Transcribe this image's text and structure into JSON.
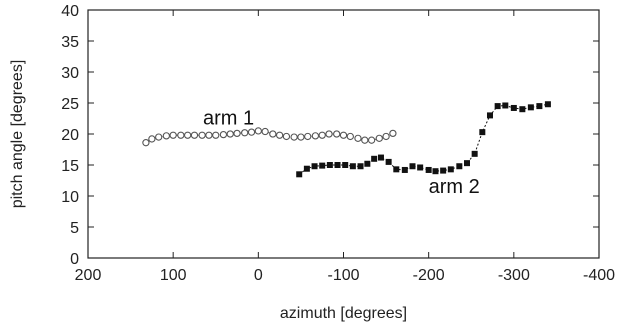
{
  "chart_data": {
    "type": "line",
    "xlabel": "azimuth [degrees]",
    "ylabel": "pitch angle [degrees]",
    "xlim": [
      200,
      -400
    ],
    "ylim": [
      0,
      40
    ],
    "x_reversed": true,
    "grid": false,
    "x_ticks": [
      200,
      100,
      0,
      -100,
      -200,
      -300,
      -400
    ],
    "x_tick_labels": [
      "200",
      "100",
      "0",
      "-100",
      "-200",
      "-300",
      "-400"
    ],
    "y_ticks": [
      0,
      5,
      10,
      15,
      20,
      25,
      30,
      35,
      40
    ],
    "y_tick_labels": [
      "0",
      "5",
      "10",
      "15",
      "20",
      "25",
      "30",
      "35",
      "40"
    ],
    "series": [
      {
        "name": "arm 1",
        "marker": "open-circle",
        "color": "#555555",
        "x": [
          132,
          125,
          117,
          108,
          100,
          91,
          83,
          75,
          66,
          58,
          50,
          41,
          33,
          25,
          16,
          8,
          0,
          -8,
          -17,
          -25,
          -33,
          -42,
          -50,
          -58,
          -67,
          -75,
          -83,
          -92,
          -100,
          -108,
          -117,
          -125,
          -133,
          -142,
          -150,
          -158
        ],
        "y": [
          18.6,
          19.2,
          19.5,
          19.7,
          19.8,
          19.8,
          19.8,
          19.8,
          19.8,
          19.8,
          19.8,
          19.9,
          20.0,
          20.1,
          20.2,
          20.3,
          20.5,
          20.4,
          20.0,
          19.8,
          19.6,
          19.5,
          19.5,
          19.6,
          19.7,
          19.8,
          20.0,
          20.0,
          19.8,
          19.6,
          19.3,
          19.0,
          19.0,
          19.3,
          19.6,
          20.1
        ]
      },
      {
        "name": "arm 2",
        "marker": "filled-square",
        "color": "#111111",
        "x": [
          -48,
          -57,
          -66,
          -75,
          -84,
          -93,
          -102,
          -111,
          -120,
          -128,
          -136,
          -144,
          -153,
          -162,
          -172,
          -181,
          -190,
          -200,
          -208,
          -217,
          -226,
          -236,
          -245,
          -254,
          -263,
          -272,
          -281,
          -290,
          -300,
          -310,
          -320,
          -330,
          -340
        ],
        "y": [
          13.5,
          14.4,
          14.8,
          14.9,
          15.0,
          15.0,
          15.0,
          14.8,
          14.8,
          15.2,
          16.0,
          16.2,
          15.5,
          14.3,
          14.2,
          14.8,
          14.6,
          14.2,
          14.0,
          14.1,
          14.3,
          14.8,
          15.3,
          16.8,
          20.3,
          23.0,
          24.5,
          24.6,
          24.2,
          24.0,
          24.3,
          24.5,
          24.8
        ]
      }
    ],
    "annotations": [
      {
        "text": "arm 1",
        "x": 35,
        "y": 21.5
      },
      {
        "text": "arm 2",
        "x": -230,
        "y": 10.5
      }
    ]
  }
}
